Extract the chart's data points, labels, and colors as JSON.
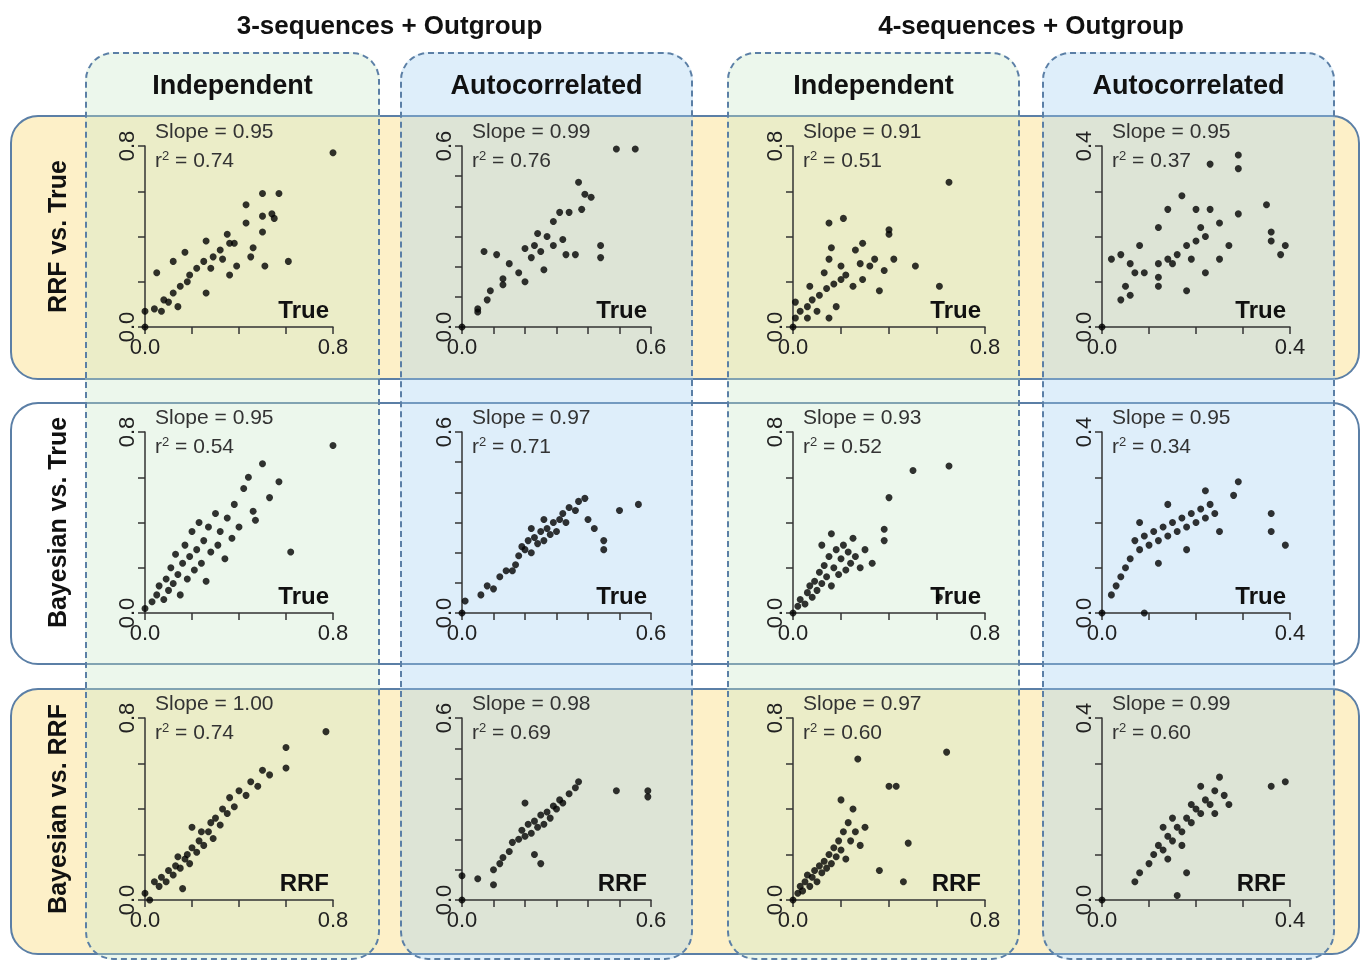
{
  "chart_data": [
    {
      "type": "scatter",
      "subtitle": "3-sequences + Outgroup",
      "title": "Independent",
      "ylabel": "RRF vs. True",
      "xlabel": "True",
      "annotations": [
        "Slope = 0.95",
        "r$^{2}$ = 0.74"
      ],
      "marker": "circle",
      "xlim": [
        0,
        0.8
      ],
      "ylim": [
        0,
        0.8
      ],
      "xticks": [
        {
          "value": 0,
          "label": "0.0"
        },
        {
          "value": 0.2,
          "label": null
        },
        {
          "value": 0.4,
          "label": null
        },
        {
          "value": 0.6,
          "label": null
        },
        0.8
      ],
      "yticks": [
        {
          "value": 0,
          "label": "0.0"
        },
        {
          "value": 0.2,
          "label": null
        },
        {
          "value": 0.4,
          "label": null
        },
        {
          "value": 0.6,
          "label": null
        },
        0.8
      ],
      "x": [
        0.8,
        0.5,
        0.57,
        0.43,
        0.5,
        0.54,
        0.55,
        0.5,
        0.43,
        0.61,
        0.51,
        0.46,
        0.45,
        0.36,
        0.35,
        0.26,
        0.26,
        0.17,
        0.12,
        0.05,
        0,
        0,
        0.04,
        0.07,
        0.1,
        0.14,
        0.12,
        0.18,
        0.22,
        0.25,
        0.29,
        0.32,
        0.36,
        0.39,
        0.19,
        0.15,
        0.08,
        0.28,
        0.33,
        0.38
      ],
      "series": [
        {
          "color": "#000000",
          "values": [
            0.77,
            0.59,
            0.59,
            0.54,
            0.49,
            0.5,
            0.48,
            0.42,
            0.46,
            0.29,
            0.27,
            0.35,
            0.31,
            0.37,
            0.41,
            0.38,
            0.15,
            0.33,
            0.29,
            0.24,
            0,
            0.07,
            0.08,
            0.07,
            0.11,
            0.09,
            0.15,
            0.2,
            0.26,
            0.29,
            0.31,
            0.34,
            0.23,
            0.27,
            0.23,
            0.18,
            0.12,
            0.26,
            0.3,
            0.37
          ]
        }
      ]
    },
    {
      "type": "scatter",
      "title": "Autocorrelated",
      "xlabel": "True",
      "annotations": [
        "Slope = 0.99",
        "r$^{2}$ = 0.76"
      ],
      "marker": "circle",
      "xlim": [
        0,
        0.6
      ],
      "ylim": [
        0,
        0.6
      ],
      "xticks": [
        {
          "value": 0,
          "label": "0.0"
        },
        {
          "value": 0.1,
          "label": null
        },
        {
          "value": 0.2,
          "label": null
        },
        {
          "value": 0.3,
          "label": null
        },
        {
          "value": 0.4,
          "label": null
        },
        {
          "value": 0.5,
          "label": null
        },
        0.6
      ],
      "yticks": [
        {
          "value": 0,
          "label": "0.0"
        },
        {
          "value": 0.1,
          "label": null
        },
        {
          "value": 0.2,
          "label": null
        },
        {
          "value": 0.3,
          "label": null
        },
        {
          "value": 0.4,
          "label": null
        },
        {
          "value": 0.5,
          "label": null
        },
        0.6
      ],
      "x": [
        0.49,
        0.55,
        0.37,
        0.39,
        0.41,
        0.38,
        0.34,
        0.31,
        0.29,
        0.24,
        0.27,
        0.32,
        0.44,
        0.44,
        0.36,
        0.33,
        0.07,
        0.11,
        0.15,
        0.2,
        0.22,
        0.25,
        0.18,
        0.2,
        0.26,
        0.13,
        0.13,
        0.09,
        0.08,
        0.05,
        0.05,
        0,
        0.29,
        0.23
      ],
      "series": [
        {
          "color": "#000000",
          "values": [
            0.59,
            0.59,
            0.48,
            0.44,
            0.43,
            0.39,
            0.38,
            0.38,
            0.35,
            0.31,
            0.3,
            0.29,
            0.27,
            0.23,
            0.24,
            0.24,
            0.25,
            0.24,
            0.21,
            0.26,
            0.23,
            0.25,
            0.18,
            0.15,
            0.19,
            0.16,
            0.14,
            0.12,
            0.09,
            0.06,
            0.05,
            0,
            0.27,
            0.27
          ]
        }
      ]
    },
    {
      "type": "scatter",
      "subtitle": "4-sequences + Outgroup",
      "title": "Independent",
      "xlabel": "True",
      "annotations": [
        "Slope = 0.91",
        "r$^{2}$ = 0.51"
      ],
      "marker": "circle",
      "xlim": [
        0,
        0.8
      ],
      "ylim": [
        0,
        0.8
      ],
      "xticks": [
        {
          "value": 0,
          "label": "0.0"
        },
        {
          "value": 0.2,
          "label": null
        },
        {
          "value": 0.4,
          "label": null
        },
        {
          "value": 0.6,
          "label": null
        },
        0.8
      ],
      "yticks": [
        {
          "value": 0,
          "label": "0.0"
        },
        {
          "value": 0.2,
          "label": null
        },
        {
          "value": 0.4,
          "label": null
        },
        {
          "value": 0.6,
          "label": null
        },
        0.8
      ],
      "x": [
        0.65,
        0.15,
        0.21,
        0.4,
        0.4,
        0.42,
        0.51,
        0.61,
        0.16,
        0.29,
        0.26,
        0.38,
        0.36,
        0.15,
        0,
        0.01,
        0.03,
        0.06,
        0.08,
        0.11,
        0.14,
        0.17,
        0.2,
        0.22,
        0.25,
        0.29,
        0.32,
        0.28,
        0.2,
        0.13,
        0.07,
        0.01,
        0.06,
        0.1,
        0.18,
        0.34,
        0.15
      ],
      "series": [
        {
          "color": "#000000",
          "values": [
            0.64,
            0.46,
            0.48,
            0.43,
            0.41,
            0.3,
            0.27,
            0.18,
            0.35,
            0.37,
            0.34,
            0.25,
            0.16,
            0.04,
            0,
            0.04,
            0.07,
            0.09,
            0.12,
            0.14,
            0.17,
            0.19,
            0.21,
            0.23,
            0.18,
            0.21,
            0.27,
            0.28,
            0.27,
            0.24,
            0.18,
            0.11,
            0.04,
            0.07,
            0.09,
            0.3,
            0.3
          ]
        }
      ]
    },
    {
      "type": "scatter",
      "title": "Autocorrelated",
      "xlabel": "True",
      "annotations": [
        "Slope = 0.95",
        "r$^{2}$ = 0.37"
      ],
      "marker": "circle",
      "xlim": [
        0,
        0.4
      ],
      "ylim": [
        0,
        0.4
      ],
      "xticks": [
        {
          "value": 0,
          "label": "0.0"
        },
        {
          "value": 0.1,
          "label": null
        },
        {
          "value": 0.2,
          "label": null
        },
        {
          "value": 0.3,
          "label": null
        },
        0.4
      ],
      "yticks": [
        {
          "value": 0,
          "label": "0.0"
        },
        {
          "value": 0.1,
          "label": null
        },
        {
          "value": 0.2,
          "label": null
        },
        {
          "value": 0.3,
          "label": null
        },
        0.4
      ],
      "x": [
        0.29,
        0.23,
        0.29,
        0.17,
        0.14,
        0.35,
        0.36,
        0.36,
        0.39,
        0.38,
        0.29,
        0.23,
        0.2,
        0.25,
        0.12,
        0.02,
        0.04,
        0.06,
        0.04,
        0.06,
        0.05,
        0,
        0.12,
        0.18,
        0.22,
        0.25,
        0.27,
        0.08,
        0.07,
        0.09,
        0.12,
        0.14,
        0.16,
        0.18,
        0.2,
        0.22,
        0.12,
        0.15,
        0.19,
        0.21
      ],
      "series": [
        {
          "color": "#000000",
          "values": [
            0.38,
            0.36,
            0.35,
            0.29,
            0.26,
            0.27,
            0.21,
            0.19,
            0.18,
            0.16,
            0.25,
            0.26,
            0.26,
            0.23,
            0.22,
            0.15,
            0.16,
            0.14,
            0.06,
            0.07,
            0.09,
            0,
            0.09,
            0.08,
            0.12,
            0.15,
            0.18,
            0.18,
            0.12,
            0.12,
            0.14,
            0.15,
            0.16,
            0.18,
            0.19,
            0.2,
            0.11,
            0.14,
            0.15,
            0.22
          ]
        }
      ]
    },
    {
      "type": "scatter",
      "ylabel": "Bayesian vs. True",
      "xlabel": "True",
      "annotations": [
        "Slope = 0.95",
        "r$^{2}$ = 0.54"
      ],
      "marker": "circle",
      "xlim": [
        0,
        0.8
      ],
      "ylim": [
        0,
        0.8
      ],
      "xticks": [
        {
          "value": 0,
          "label": "0.0"
        },
        {
          "value": 0.2,
          "label": null
        },
        {
          "value": 0.4,
          "label": null
        },
        {
          "value": 0.6,
          "label": null
        },
        0.8
      ],
      "yticks": [
        {
          "value": 0,
          "label": "0.0"
        },
        {
          "value": 0.2,
          "label": null
        },
        {
          "value": 0.4,
          "label": null
        },
        {
          "value": 0.6,
          "label": null
        },
        0.8
      ],
      "x": [
        0,
        0.03,
        0.05,
        0.06,
        0.08,
        0.09,
        0.1,
        0.11,
        0.12,
        0.13,
        0.14,
        0.15,
        0.16,
        0.17,
        0.18,
        0.19,
        0.2,
        0.21,
        0.22,
        0.23,
        0.24,
        0.25,
        0.26,
        0.27,
        0.28,
        0.3,
        0.31,
        0.32,
        0.34,
        0.35,
        0.37,
        0.38,
        0.4,
        0.42,
        0.44,
        0.46,
        0.47,
        0.5,
        0.53,
        0.57,
        0.62,
        0.8
      ],
      "series": [
        {
          "color": "#000000",
          "values": [
            0.02,
            0.05,
            0.08,
            0.12,
            0.06,
            0.15,
            0.1,
            0.2,
            0.13,
            0.26,
            0.17,
            0.08,
            0.22,
            0.3,
            0.15,
            0.25,
            0.36,
            0.19,
            0.28,
            0.4,
            0.22,
            0.32,
            0.14,
            0.38,
            0.27,
            0.44,
            0.3,
            0.36,
            0.24,
            0.42,
            0.33,
            0.48,
            0.38,
            0.55,
            0.6,
            0.45,
            0.41,
            0.66,
            0.51,
            0.58,
            0.27,
            0.74
          ]
        }
      ]
    },
    {
      "type": "scatter",
      "xlabel": "True",
      "annotations": [
        "Slope = 0.97",
        "r$^{2}$ = 0.71"
      ],
      "marker": "circle",
      "xlim": [
        0,
        0.6
      ],
      "ylim": [
        0,
        0.6
      ],
      "xticks": [
        {
          "value": 0,
          "label": "0.0"
        },
        {
          "value": 0.1,
          "label": null
        },
        {
          "value": 0.2,
          "label": null
        },
        {
          "value": 0.3,
          "label": null
        },
        {
          "value": 0.4,
          "label": null
        },
        {
          "value": 0.5,
          "label": null
        },
        0.6
      ],
      "yticks": [
        {
          "value": 0,
          "label": "0.0"
        },
        {
          "value": 0.1,
          "label": null
        },
        {
          "value": 0.2,
          "label": null
        },
        {
          "value": 0.3,
          "label": null
        },
        {
          "value": 0.4,
          "label": null
        },
        {
          "value": 0.5,
          "label": null
        },
        0.6
      ],
      "x": [
        0,
        0.01,
        0.06,
        0.08,
        0.1,
        0.12,
        0.14,
        0.16,
        0.17,
        0.18,
        0.19,
        0.2,
        0.21,
        0.22,
        0.23,
        0.24,
        0.25,
        0.26,
        0.27,
        0.28,
        0.29,
        0.3,
        0.31,
        0.32,
        0.33,
        0.34,
        0.36,
        0.37,
        0.39,
        0.4,
        0.42,
        0.45,
        0.45,
        0.5,
        0.56,
        0.26,
        0.22
      ],
      "series": [
        {
          "color": "#000000",
          "values": [
            0,
            0.04,
            0.06,
            0.09,
            0.08,
            0.12,
            0.14,
            0.14,
            0.16,
            0.19,
            0.22,
            0.21,
            0.24,
            0.2,
            0.25,
            0.23,
            0.27,
            0.24,
            0.28,
            0.26,
            0.3,
            0.27,
            0.31,
            0.33,
            0.3,
            0.35,
            0.34,
            0.37,
            0.38,
            0.31,
            0.28,
            0.24,
            0.21,
            0.34,
            0.36,
            0.31,
            0.28
          ]
        }
      ]
    },
    {
      "type": "scatter",
      "xlabel": "True",
      "annotations": [
        "Slope = 0.93",
        "r$^{2}$ = 0.52"
      ],
      "marker": "circle",
      "xlim": [
        0,
        0.8
      ],
      "ylim": [
        0,
        0.8
      ],
      "xticks": [
        {
          "value": 0,
          "label": "0.0"
        },
        {
          "value": 0.2,
          "label": null
        },
        {
          "value": 0.4,
          "label": null
        },
        {
          "value": 0.6,
          "label": null
        },
        0.8
      ],
      "yticks": [
        {
          "value": 0,
          "label": "0.0"
        },
        {
          "value": 0.2,
          "label": null
        },
        {
          "value": 0.4,
          "label": null
        },
        {
          "value": 0.6,
          "label": null
        },
        0.8
      ],
      "x": [
        0,
        0.02,
        0.03,
        0.05,
        0.06,
        0.07,
        0.08,
        0.09,
        0.1,
        0.11,
        0.12,
        0.13,
        0.14,
        0.15,
        0.16,
        0.17,
        0.18,
        0.19,
        0.2,
        0.21,
        0.22,
        0.23,
        0.24,
        0.25,
        0.26,
        0.28,
        0.3,
        0.33,
        0.38,
        0.38,
        0.4,
        0.5,
        0.65,
        0.61,
        0.12,
        0.16
      ],
      "series": [
        {
          "color": "#000000",
          "values": [
            0,
            0.03,
            0.06,
            0.04,
            0.09,
            0.12,
            0.07,
            0.14,
            0.1,
            0.18,
            0.13,
            0.21,
            0.16,
            0.25,
            0.12,
            0.2,
            0.28,
            0.17,
            0.24,
            0.3,
            0.19,
            0.27,
            0.22,
            0.33,
            0.25,
            0.2,
            0.28,
            0.22,
            0.32,
            0.37,
            0.51,
            0.63,
            0.65,
            0.07,
            0.3,
            0.35
          ]
        }
      ]
    },
    {
      "type": "scatter",
      "xlabel": "True",
      "annotations": [
        "Slope = 0.95",
        "r$^{2}$ = 0.34"
      ],
      "marker": "circle",
      "xlim": [
        0,
        0.4
      ],
      "ylim": [
        0,
        0.4
      ],
      "xticks": [
        {
          "value": 0,
          "label": "0.0"
        },
        {
          "value": 0.1,
          "label": null
        },
        {
          "value": 0.2,
          "label": null
        },
        {
          "value": 0.3,
          "label": null
        },
        0.4
      ],
      "yticks": [
        {
          "value": 0,
          "label": "0.0"
        },
        {
          "value": 0.1,
          "label": null
        },
        {
          "value": 0.2,
          "label": null
        },
        {
          "value": 0.3,
          "label": null
        },
        0.4
      ],
      "x": [
        0,
        0.09,
        0.02,
        0.03,
        0.04,
        0.05,
        0.06,
        0.07,
        0.08,
        0.09,
        0.1,
        0.11,
        0.12,
        0.13,
        0.14,
        0.15,
        0.16,
        0.17,
        0.18,
        0.19,
        0.2,
        0.21,
        0.22,
        0.23,
        0.24,
        0.12,
        0.18,
        0.22,
        0.25,
        0.28,
        0.29,
        0.36,
        0.36,
        0.39,
        0.14,
        0.08
      ],
      "series": [
        {
          "color": "#000000",
          "values": [
            0,
            0,
            0.04,
            0.06,
            0.08,
            0.1,
            0.12,
            0.16,
            0.14,
            0.17,
            0.15,
            0.18,
            0.16,
            0.19,
            0.17,
            0.2,
            0.18,
            0.21,
            0.19,
            0.22,
            0.2,
            0.23,
            0.21,
            0.24,
            0.22,
            0.11,
            0.14,
            0.27,
            0.18,
            0.26,
            0.29,
            0.22,
            0.18,
            0.15,
            0.24,
            0.2
          ]
        }
      ]
    },
    {
      "type": "scatter",
      "ylabel": "Bayesian vs. RRF",
      "xlabel": "RRF",
      "annotations": [
        "Slope = 1.00",
        "r$^{2}$ = 0.74"
      ],
      "marker": "circle",
      "xlim": [
        0,
        0.8
      ],
      "ylim": [
        0,
        0.8
      ],
      "xticks": [
        {
          "value": 0,
          "label": "0.0"
        },
        {
          "value": 0.2,
          "label": null
        },
        {
          "value": 0.4,
          "label": null
        },
        {
          "value": 0.6,
          "label": null
        },
        0.8
      ],
      "yticks": [
        {
          "value": 0,
          "label": "0.0"
        },
        {
          "value": 0.2,
          "label": null
        },
        {
          "value": 0.4,
          "label": null
        },
        {
          "value": 0.6,
          "label": null
        },
        0.8
      ],
      "x": [
        0,
        0.02,
        0.04,
        0.06,
        0.07,
        0.09,
        0.1,
        0.12,
        0.13,
        0.14,
        0.15,
        0.17,
        0.18,
        0.19,
        0.2,
        0.22,
        0.23,
        0.24,
        0.25,
        0.27,
        0.28,
        0.29,
        0.3,
        0.32,
        0.33,
        0.35,
        0.36,
        0.38,
        0.4,
        0.43,
        0.45,
        0.48,
        0.5,
        0.53,
        0.6,
        0.6,
        0.77,
        0.2,
        0.16
      ],
      "series": [
        {
          "color": "#000000",
          "values": [
            0.03,
            0,
            0.08,
            0.06,
            0.1,
            0.08,
            0.13,
            0.11,
            0.15,
            0.19,
            0.14,
            0.18,
            0.2,
            0.16,
            0.23,
            0.21,
            0.26,
            0.3,
            0.24,
            0.3,
            0.34,
            0.27,
            0.36,
            0.33,
            0.4,
            0.38,
            0.45,
            0.41,
            0.48,
            0.46,
            0.52,
            0.5,
            0.57,
            0.55,
            0.58,
            0.67,
            0.74,
            0.32,
            0.05
          ]
        }
      ]
    },
    {
      "type": "scatter",
      "xlabel": "RRF",
      "annotations": [
        "Slope = 0.98",
        "r$^{2}$ = 0.69"
      ],
      "marker": "circle",
      "xlim": [
        0,
        0.6
      ],
      "ylim": [
        0,
        0.6
      ],
      "xticks": [
        {
          "value": 0,
          "label": "0.0"
        },
        {
          "value": 0.1,
          "label": null
        },
        {
          "value": 0.2,
          "label": null
        },
        {
          "value": 0.3,
          "label": null
        },
        {
          "value": 0.4,
          "label": null
        },
        {
          "value": 0.5,
          "label": null
        },
        0.6
      ],
      "yticks": [
        {
          "value": 0,
          "label": "0.0"
        },
        {
          "value": 0.1,
          "label": null
        },
        {
          "value": 0.2,
          "label": null
        },
        {
          "value": 0.3,
          "label": null
        },
        {
          "value": 0.4,
          "label": null
        },
        {
          "value": 0.5,
          "label": null
        },
        0.6
      ],
      "x": [
        0,
        0,
        0.05,
        0.1,
        0.1,
        0.12,
        0.13,
        0.15,
        0.16,
        0.18,
        0.19,
        0.2,
        0.21,
        0.22,
        0.23,
        0.24,
        0.25,
        0.26,
        0.27,
        0.28,
        0.29,
        0.3,
        0.31,
        0.32,
        0.34,
        0.36,
        0.37,
        0.23,
        0.25,
        0.2,
        0.49,
        0.59,
        0.59
      ],
      "series": [
        {
          "color": "#000000",
          "values": [
            0,
            0.08,
            0.07,
            0.05,
            0.1,
            0.12,
            0.14,
            0.16,
            0.19,
            0.2,
            0.23,
            0.21,
            0.25,
            0.22,
            0.26,
            0.24,
            0.28,
            0.25,
            0.29,
            0.27,
            0.31,
            0.3,
            0.33,
            0.32,
            0.35,
            0.37,
            0.39,
            0.15,
            0.12,
            0.32,
            0.36,
            0.36,
            0.34
          ]
        }
      ]
    },
    {
      "type": "scatter",
      "xlabel": "RRF",
      "annotations": [
        "Slope = 0.97",
        "r$^{2}$ = 0.60"
      ],
      "marker": "circle",
      "xlim": [
        0,
        0.8
      ],
      "ylim": [
        0,
        0.8
      ],
      "xticks": [
        {
          "value": 0,
          "label": "0.0"
        },
        {
          "value": 0.2,
          "label": null
        },
        {
          "value": 0.4,
          "label": null
        },
        {
          "value": 0.6,
          "label": null
        },
        0.8
      ],
      "yticks": [
        {
          "value": 0,
          "label": "0.0"
        },
        {
          "value": 0.2,
          "label": null
        },
        {
          "value": 0.4,
          "label": null
        },
        {
          "value": 0.6,
          "label": null
        },
        0.8
      ],
      "x": [
        0,
        0.02,
        0.03,
        0.04,
        0.05,
        0.06,
        0.07,
        0.08,
        0.09,
        0.1,
        0.11,
        0.12,
        0.13,
        0.14,
        0.15,
        0.16,
        0.17,
        0.18,
        0.19,
        0.2,
        0.21,
        0.22,
        0.23,
        0.24,
        0.25,
        0.26,
        0.27,
        0.28,
        0.3,
        0.36,
        0.4,
        0.43,
        0.46,
        0.48,
        0.64,
        0.2
      ],
      "series": [
        {
          "color": "#000000",
          "values": [
            0,
            0.03,
            0.06,
            0.04,
            0.08,
            0.11,
            0.06,
            0.1,
            0.13,
            0.08,
            0.15,
            0.12,
            0.17,
            0.14,
            0.2,
            0.16,
            0.23,
            0.19,
            0.26,
            0.22,
            0.3,
            0.18,
            0.34,
            0.26,
            0.4,
            0.3,
            0.62,
            0.24,
            0.32,
            0.13,
            0.5,
            0.5,
            0.08,
            0.25,
            0.65,
            0.44
          ]
        }
      ]
    },
    {
      "type": "scatter",
      "xlabel": "RRF",
      "annotations": [
        "Slope = 0.99",
        "r$^{2}$ = 0.60"
      ],
      "marker": "circle",
      "xlim": [
        0,
        0.4
      ],
      "ylim": [
        0,
        0.4
      ],
      "xticks": [
        {
          "value": 0,
          "label": "0.0"
        },
        {
          "value": 0.1,
          "label": null
        },
        {
          "value": 0.2,
          "label": null
        },
        {
          "value": 0.3,
          "label": null
        },
        0.4
      ],
      "yticks": [
        {
          "value": 0,
          "label": "0.0"
        },
        {
          "value": 0.1,
          "label": null
        },
        {
          "value": 0.2,
          "label": null
        },
        {
          "value": 0.3,
          "label": null
        },
        0.4
      ],
      "x": [
        0,
        0.07,
        0.08,
        0.1,
        0.11,
        0.12,
        0.13,
        0.14,
        0.15,
        0.16,
        0.17,
        0.18,
        0.19,
        0.2,
        0.21,
        0.22,
        0.23,
        0.24,
        0.25,
        0.26,
        0.13,
        0.15,
        0.17,
        0.19,
        0.21,
        0.27,
        0.16,
        0.18,
        0.36,
        0.39,
        0.24,
        0.14
      ],
      "series": [
        {
          "color": "#000000",
          "values": [
            0,
            0.04,
            0.06,
            0.08,
            0.1,
            0.12,
            0.11,
            0.14,
            0.13,
            0.16,
            0.15,
            0.18,
            0.17,
            0.2,
            0.19,
            0.22,
            0.21,
            0.24,
            0.27,
            0.23,
            0.16,
            0.18,
            0.12,
            0.21,
            0.25,
            0.21,
            0.01,
            0.06,
            0.25,
            0.26,
            0.19,
            0.09
          ]
        }
      ]
    }
  ]
}
